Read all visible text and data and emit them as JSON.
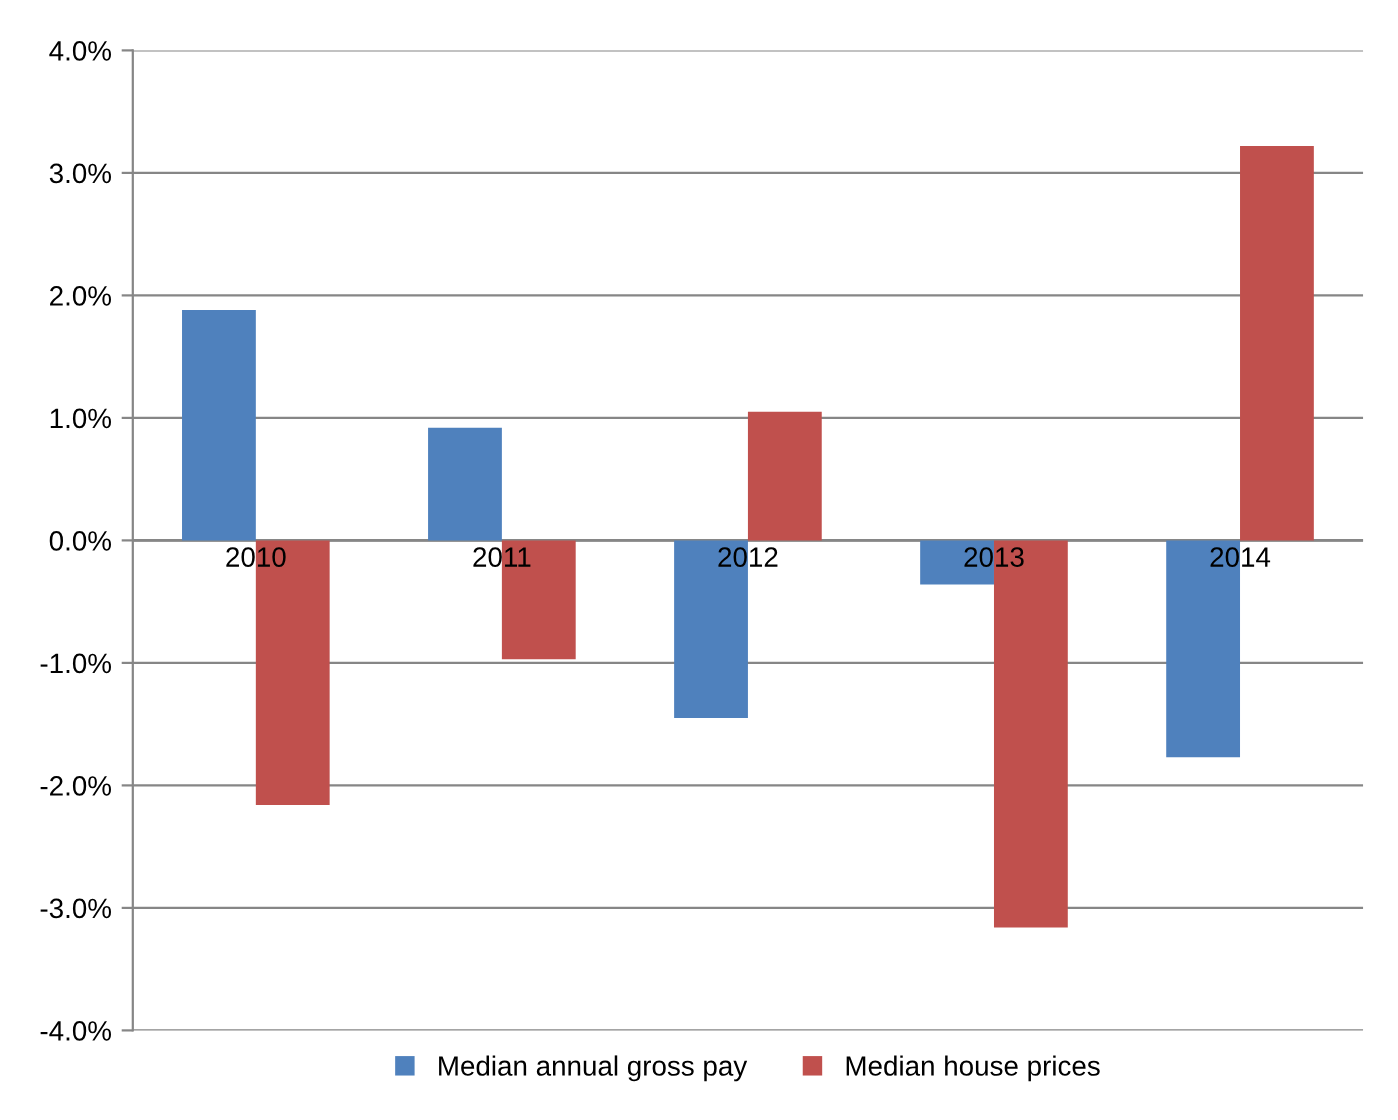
{
  "chart_data": {
    "type": "bar",
    "categories": [
      "2010",
      "2011",
      "2012",
      "2013",
      "2014"
    ],
    "series": [
      {
        "name": "Median annual gross pay",
        "color": "#4f81bd",
        "values": [
          1.88,
          0.92,
          -1.45,
          -0.36,
          -1.77
        ]
      },
      {
        "name": "Median house prices",
        "color": "#c0504d",
        "values": [
          -2.16,
          -0.97,
          1.05,
          -3.16,
          3.22
        ]
      }
    ],
    "ylim": [
      -4,
      4
    ],
    "yticks": [
      {
        "value": -4,
        "label": "-4.0%"
      },
      {
        "value": -3,
        "label": "-3.0%"
      },
      {
        "value": -2,
        "label": "-2.0%"
      },
      {
        "value": -1,
        "label": "-1.0%"
      },
      {
        "value": 0,
        "label": "0.0%"
      },
      {
        "value": 1,
        "label": "1.0%"
      },
      {
        "value": 2,
        "label": "2.0%"
      },
      {
        "value": 3,
        "label": "3.0%"
      },
      {
        "value": 4,
        "label": "4.0%"
      }
    ],
    "grid": "y",
    "legend": "bottom"
  }
}
